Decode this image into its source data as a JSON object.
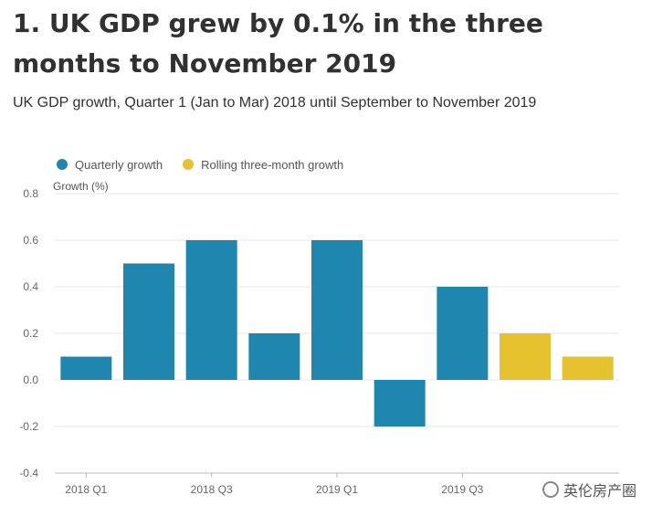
{
  "title": "1.  UK GDP grew by 0.1% in the three months to November 2019",
  "subtitle": "UK GDP growth, Quarter 1 (Jan to Mar) 2018 until September to November 2019",
  "watermark": "英伦房产圈",
  "colors": {
    "quarterly": "#1f86b0",
    "rolling": "#e5c22e",
    "grid": "#e4e4e4",
    "axis": "#bbbbbb"
  },
  "chart_data": {
    "type": "bar",
    "ylabel": "Growth (%)",
    "ylim": [
      -0.4,
      0.8
    ],
    "yticks": [
      "0.8",
      "0.6",
      "0.4",
      "0.2",
      "0.0",
      "-0.2",
      "-0.4"
    ],
    "ytick_values": [
      0.8,
      0.6,
      0.4,
      0.2,
      0.0,
      -0.2,
      -0.4
    ],
    "grid": true,
    "legend_placement": "top-left",
    "x_tick_labels": [
      {
        "label": "2018 Q1",
        "index": 0
      },
      {
        "label": "2018 Q3",
        "index": 2
      },
      {
        "label": "2019 Q1",
        "index": 4
      },
      {
        "label": "2019 Q3",
        "index": 6
      }
    ],
    "series": [
      {
        "name": "Quarterly growth",
        "indices": [
          0,
          1,
          2,
          3,
          4,
          5,
          6
        ],
        "values": [
          0.1,
          0.5,
          0.6,
          0.2,
          0.6,
          -0.2,
          0.4
        ]
      },
      {
        "name": "Rolling three-month growth",
        "indices": [
          7,
          8
        ],
        "values": [
          0.2,
          0.1
        ]
      }
    ],
    "category_count": 9
  }
}
